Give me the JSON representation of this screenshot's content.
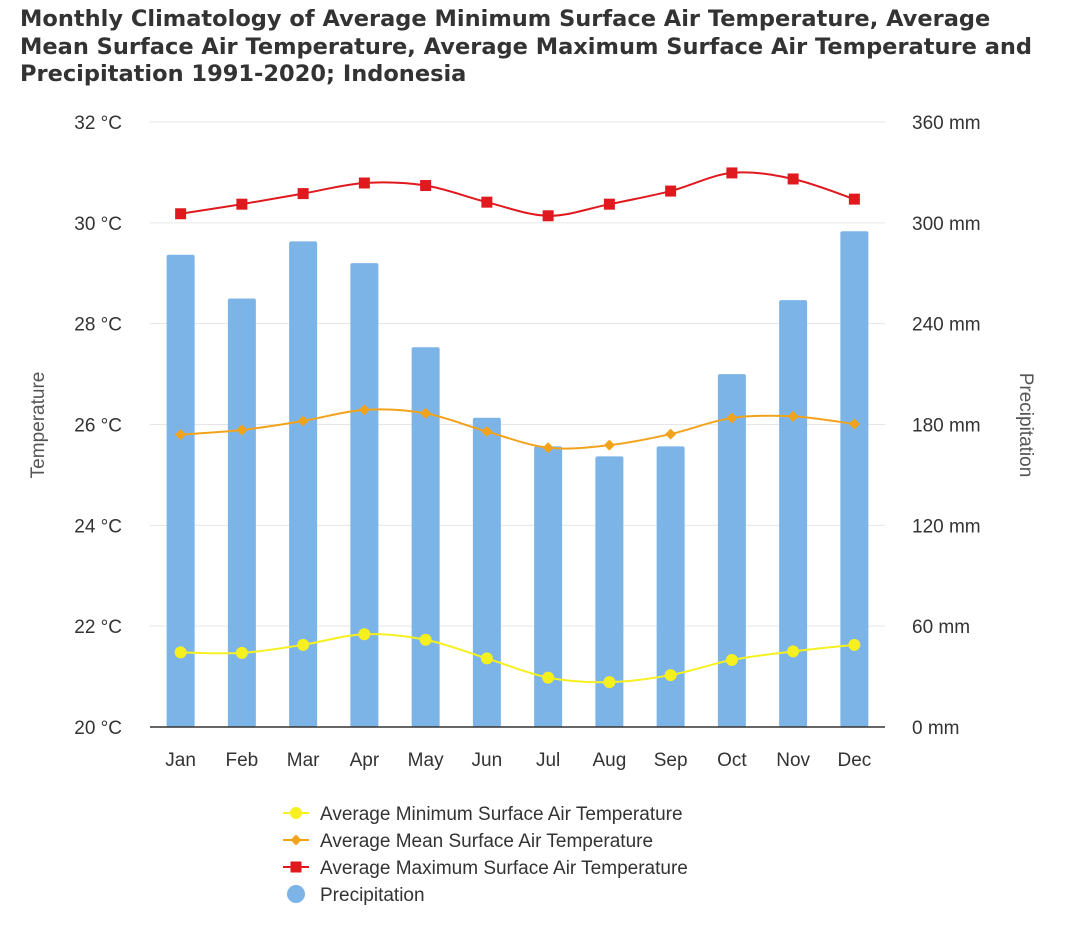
{
  "title_lines": [
    "Monthly Climatology of Average Minimum Surface Air Temperature, Average",
    "Mean Surface Air Temperature, Average Maximum Surface Air Temperature and",
    "Precipitation 1991-2020; Indonesia"
  ],
  "chart_data": {
    "type": "bar",
    "categories": [
      "Jan",
      "Feb",
      "Mar",
      "Apr",
      "May",
      "Jun",
      "Jul",
      "Aug",
      "Sep",
      "Oct",
      "Nov",
      "Dec"
    ],
    "y_left": {
      "label": "Temperature",
      "range": [
        20,
        32
      ],
      "ticks": [
        "20 °C",
        "22 °C",
        "24 °C",
        "26 °C",
        "28 °C",
        "30 °C",
        "32 °C"
      ]
    },
    "y_right": {
      "label": "Precipitation",
      "range": [
        0,
        360
      ],
      "ticks": [
        "0 mm",
        "60 mm",
        "120 mm",
        "180 mm",
        "240 mm",
        "300 mm",
        "360 mm"
      ]
    },
    "grid": true,
    "legend_position": "bottom",
    "series": [
      {
        "name": "Average Minimum Surface Air Temperature",
        "type": "line",
        "axis": "left",
        "color": "#f5f01e",
        "marker": "circle",
        "values": [
          21.48,
          21.47,
          21.63,
          21.84,
          21.73,
          21.36,
          20.98,
          20.89,
          21.03,
          21.33,
          21.5,
          21.63
        ]
      },
      {
        "name": "Average Mean Surface Air Temperature",
        "type": "line",
        "axis": "left",
        "color": "#f2a31b",
        "marker": "diamond",
        "values": [
          25.8,
          25.89,
          26.07,
          26.29,
          26.22,
          25.86,
          25.54,
          25.59,
          25.81,
          26.13,
          26.16,
          26.01
        ]
      },
      {
        "name": "Average Maximum Surface Air Temperature",
        "type": "line",
        "axis": "left",
        "color": "#e0191f",
        "marker": "square",
        "values": [
          30.18,
          30.37,
          30.58,
          30.79,
          30.74,
          30.41,
          30.14,
          30.37,
          30.63,
          30.99,
          30.87,
          30.47
        ]
      },
      {
        "name": "Precipitation",
        "type": "bar",
        "axis": "right",
        "color": "#7db4e8",
        "marker": "circle",
        "values": [
          281,
          255,
          289,
          276,
          226,
          184,
          167,
          161,
          167,
          210,
          254,
          295
        ]
      }
    ]
  }
}
